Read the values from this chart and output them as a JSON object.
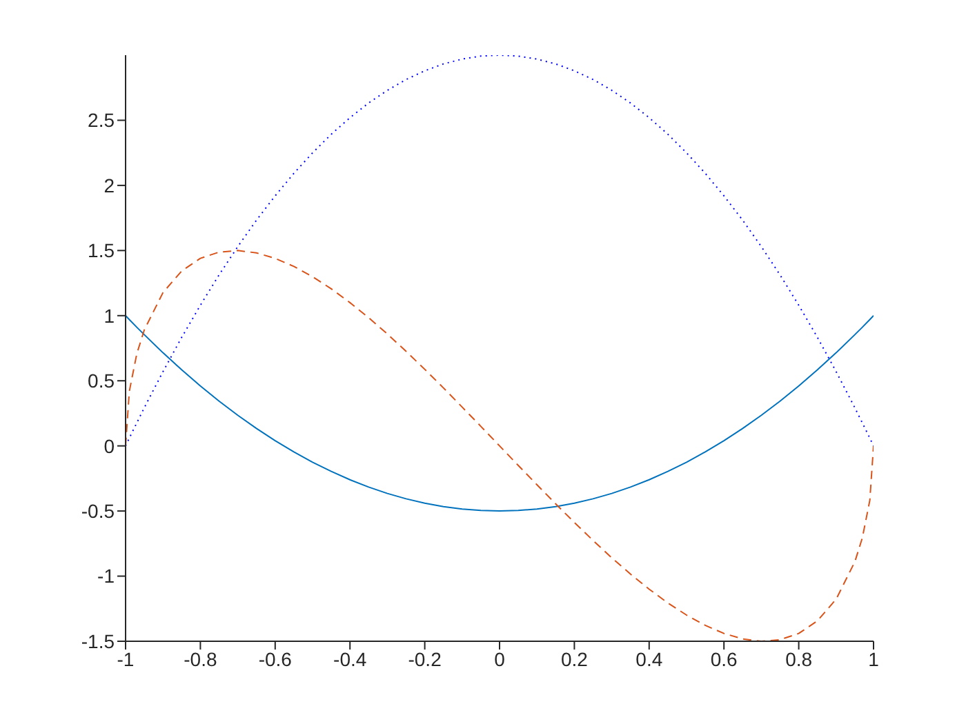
{
  "chart_data": {
    "type": "line",
    "x": [
      -1,
      -0.99,
      -0.97,
      -0.95,
      -0.9,
      -0.85,
      -0.8,
      -0.75,
      -0.7,
      -0.65,
      -0.6,
      -0.55,
      -0.5,
      -0.45,
      -0.4,
      -0.35,
      -0.3,
      -0.25,
      -0.2,
      -0.15,
      -0.1,
      -0.05,
      0,
      0.05,
      0.1,
      0.15,
      0.2,
      0.25,
      0.3,
      0.35,
      0.4,
      0.45,
      0.5,
      0.55,
      0.6,
      0.65,
      0.7,
      0.75,
      0.8,
      0.85,
      0.9,
      0.95,
      0.97,
      0.99,
      1
    ],
    "series": [
      {
        "color": "#0072bd",
        "line_style": "solid",
        "values": [
          1,
          0.97,
          0.911,
          0.854,
          0.715,
          0.584,
          0.46,
          0.344,
          0.235,
          0.134,
          0.04,
          -0.046,
          -0.125,
          -0.196,
          -0.26,
          -0.316,
          -0.365,
          -0.406,
          -0.44,
          -0.466,
          -0.485,
          -0.496,
          -0.5,
          -0.496,
          -0.485,
          -0.466,
          -0.44,
          -0.406,
          -0.365,
          -0.316,
          -0.26,
          -0.196,
          -0.125,
          -0.046,
          0.04,
          0.134,
          0.235,
          0.344,
          0.46,
          0.584,
          0.715,
          0.854,
          0.911,
          0.97,
          1
        ]
      },
      {
        "color": "#d95319",
        "line_style": "dashed",
        "values": [
          0,
          0.419,
          0.707,
          0.89,
          1.177,
          1.343,
          1.44,
          1.488,
          1.5,
          1.482,
          1.44,
          1.378,
          1.299,
          1.206,
          1.1,
          0.984,
          0.859,
          0.726,
          0.588,
          0.445,
          0.298,
          0.15,
          0,
          -0.15,
          -0.298,
          -0.445,
          -0.588,
          -0.726,
          -0.859,
          -0.984,
          -1.1,
          -1.206,
          -1.299,
          -1.378,
          -1.44,
          -1.482,
          -1.5,
          -1.488,
          -1.44,
          -1.343,
          -1.177,
          -0.89,
          -0.707,
          -0.419,
          0
        ]
      },
      {
        "color": "#0000ff",
        "line_style": "dotted",
        "values": [
          0,
          0.06,
          0.177,
          0.293,
          0.57,
          0.833,
          1.08,
          1.313,
          1.53,
          1.733,
          1.92,
          2.093,
          2.25,
          2.393,
          2.52,
          2.633,
          2.73,
          2.813,
          2.88,
          2.933,
          2.97,
          2.993,
          3,
          2.993,
          2.97,
          2.933,
          2.88,
          2.813,
          2.73,
          2.633,
          2.52,
          2.393,
          2.25,
          2.093,
          1.92,
          1.733,
          1.53,
          1.313,
          1.08,
          0.833,
          0.57,
          0.293,
          0.177,
          0.06,
          0
        ]
      }
    ],
    "xlim": [
      -1,
      1
    ],
    "xticks": [
      -1,
      -0.8,
      -0.6,
      -0.4,
      -0.2,
      0,
      0.2,
      0.4,
      0.6,
      0.8,
      1
    ],
    "ylim": [
      -1.5,
      3
    ],
    "yticks": [
      -1.5,
      -1,
      -0.5,
      0,
      0.5,
      1,
      1.5,
      2,
      2.5
    ],
    "marker": "none"
  }
}
